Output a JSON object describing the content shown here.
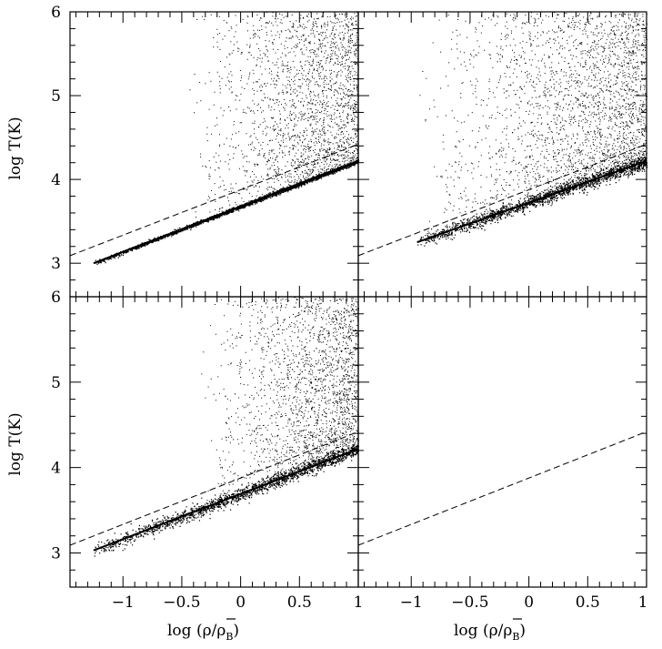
{
  "figure": {
    "xlabel_prefix": "log (ρ/",
    "xlabel_rho": "ρ",
    "xlabel_sub": "B",
    "xlabel_suffix": ")",
    "ylabel": "log T(K)"
  },
  "chart_data": [
    {
      "panel": "top-left",
      "type": "scatter",
      "xlim": [
        -1.45,
        1.0
      ],
      "ylim": [
        2.6,
        6.0
      ],
      "x_ticks": [
        -1,
        -0.5,
        0,
        0.5,
        1
      ],
      "y_ticks": [
        3,
        4,
        5,
        6
      ],
      "x_tick_labels_shown": false,
      "y_tick_labels_shown": true,
      "equation_of_state_line": {
        "x": [
          -1.25,
          1.0
        ],
        "y": [
          3.0,
          4.22
        ]
      },
      "dashed_reference_line": {
        "x": [
          -1.45,
          1.0
        ],
        "y": [
          3.09,
          4.42
        ]
      },
      "scatter_description": "dense particle cloud tightly following the equation-of-state line, shock-heated particles spreading upward to log T = 6 at log rho above about -0.4"
    },
    {
      "panel": "top-right",
      "type": "scatter",
      "xlim": [
        -1.45,
        1.0
      ],
      "ylim": [
        2.6,
        6.0
      ],
      "x_ticks": [
        -1,
        -0.5,
        0,
        0.5,
        1
      ],
      "y_ticks": [
        3,
        4,
        5,
        6
      ],
      "x_tick_labels_shown": false,
      "y_tick_labels_shown": false,
      "equation_of_state_line": {
        "x": [
          -0.95,
          1.0
        ],
        "y": [
          3.25,
          4.22
        ]
      },
      "dashed_reference_line": {
        "x": [
          -1.45,
          1.0
        ],
        "y": [
          3.09,
          4.42
        ]
      },
      "scatter_description": "broad cloud starting at log rho about -0.95, sparse scatter up to log T = 6"
    },
    {
      "panel": "bottom-left",
      "type": "scatter",
      "xlim": [
        -1.45,
        1.0
      ],
      "ylim": [
        2.6,
        6.0
      ],
      "x_ticks": [
        -1,
        -0.5,
        0,
        0.5,
        1
      ],
      "y_ticks": [
        3,
        4,
        5,
        6
      ],
      "x_tick_labels_shown": true,
      "y_tick_labels_shown": true,
      "equation_of_state_line": {
        "x": [
          -1.25,
          1.0
        ],
        "y": [
          3.03,
          4.22
        ]
      },
      "dashed_reference_line": {
        "x": [
          -1.45,
          1.0
        ],
        "y": [
          3.09,
          4.42
        ]
      },
      "scatter_description": "particles around the equation-of-state line from log rho about -0.9, hot particles up to log T = 6 above log rho about -0.3"
    },
    {
      "panel": "bottom-right",
      "type": "line",
      "xlim": [
        -1.45,
        1.0
      ],
      "ylim": [
        2.6,
        6.0
      ],
      "x_ticks": [
        -1,
        -0.5,
        0,
        0.5,
        1
      ],
      "y_ticks": [
        3,
        4,
        5,
        6
      ],
      "x_tick_labels_shown": true,
      "y_tick_labels_shown": false,
      "dashed_reference_line": {
        "x": [
          -1.45,
          1.0
        ],
        "y": [
          3.09,
          4.42
        ]
      }
    }
  ]
}
